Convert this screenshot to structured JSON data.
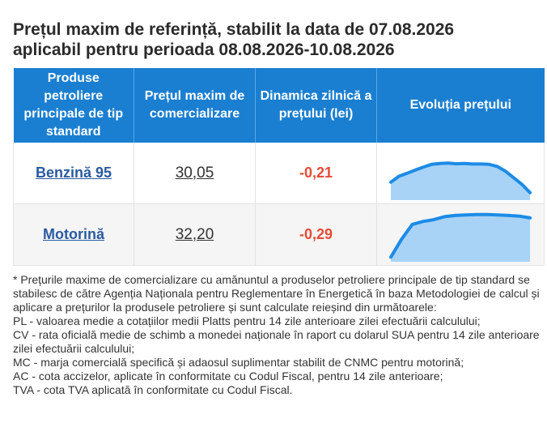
{
  "title_line1": "Prețul maxim de referință, stabilit la data de 07.08.2026",
  "title_line2": "aplicabil pentru perioada 08.08.2026-10.08.2026",
  "table": {
    "headers": [
      "Produse petroliere principale de tip standard",
      "Prețul maxim de comercializare",
      "Dinamica zilnică a prețului (lei)",
      "Evoluția prețului"
    ],
    "rows": [
      {
        "product": "Benzină 95",
        "price": "30,05",
        "delta": "-0,21",
        "trend": [
          20.5,
          22.5,
          23.5,
          24.6,
          25.6,
          26.5,
          26.8,
          26.9,
          26.7,
          26.8,
          26.6,
          26.6,
          26.5,
          25.8,
          24.2,
          22.0,
          19.8,
          17.0
        ]
      },
      {
        "product": "Motorină",
        "price": "32,20",
        "delta": "-0,29",
        "trend": [
          16.0,
          22.0,
          27.0,
          28.0,
          28.6,
          29.6,
          30.0,
          30.2,
          30.3,
          30.3,
          30.2,
          30.0,
          29.8,
          29.2
        ]
      }
    ]
  },
  "colors": {
    "header_bg": "#1a7fd1",
    "spark_line": "#1d8be6",
    "spark_fill": "#a8d3f6",
    "delta": "#e54b36",
    "link": "#2a5aa0"
  },
  "notes": [
    "* Prețurile maxime de comercializare cu amănuntul a produselor petroliere principale de tip standard se stabilesc de către Agenția Naționala pentru Reglementare în Energetică în baza Metodologiei de calcul și aplicare a prețurilor la produsele petroliere și sunt calculate reieșind din următoarele:",
    "PL - valoarea medie a cotațiilor medii Platts pentru 14 zile anterioare zilei efectuării calculului;",
    "CV - rata oficială medie de schimb a monedei naționale în raport cu dolarul SUA pentru 14 zile anterioare zilei efectuării calculului;",
    "MC - marja comercială specifică și adaosul suplimentar stabilit de CNMC pentru motorină;",
    "AC - cota accizelor, aplicate în conformitate cu Codul Fiscal, pentru 14 zile anterioare;",
    "TVA - cota TVA aplicată în conformitate cu Codul Fiscal."
  ]
}
